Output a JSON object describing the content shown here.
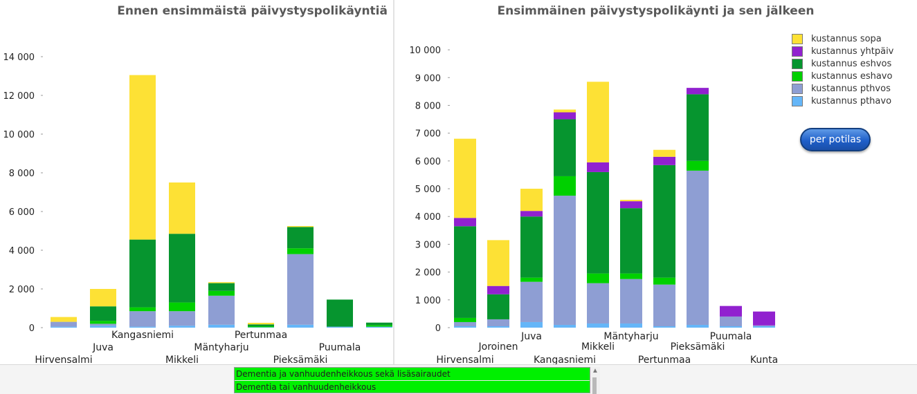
{
  "chart_data": [
    {
      "type": "bar",
      "stacked": true,
      "title": "Ennen ensimmäistä päivystyspolikäyntiä",
      "categories": [
        "Hirvensalmi",
        "Juva",
        "Kangasniemi",
        "Mikkeli",
        "Mäntyharju",
        "Pertunmaa",
        "Pieksämäki",
        "Puumala",
        ""
      ],
      "ylim": [
        0,
        14500
      ],
      "yticks": [
        0,
        2000,
        4000,
        6000,
        8000,
        10000,
        12000,
        14000
      ],
      "ytick_labels": [
        "0",
        "2 000",
        "4 000",
        "6 000",
        "8 000",
        "10 000",
        "12 000",
        "14 000"
      ],
      "series": [
        {
          "name": "kustannus pthavo",
          "values": [
            50,
            100,
            50,
            100,
            150,
            20,
            150,
            50,
            50
          ]
        },
        {
          "name": "kustannus pthvos",
          "values": [
            250,
            100,
            800,
            750,
            1500,
            0,
            3650,
            0,
            0
          ]
        },
        {
          "name": "kustannus eshavo",
          "values": [
            0,
            150,
            200,
            450,
            250,
            50,
            300,
            0,
            80
          ]
        },
        {
          "name": "kustannus eshvos",
          "values": [
            0,
            750,
            3500,
            3550,
            400,
            100,
            1100,
            1400,
            130
          ]
        },
        {
          "name": "kustannus yhtpäiv",
          "values": [
            0,
            0,
            0,
            0,
            0,
            0,
            0,
            0,
            0
          ]
        },
        {
          "name": "kustannus sopa",
          "values": [
            250,
            900,
            8500,
            2650,
            50,
            80,
            50,
            0,
            0
          ]
        }
      ]
    },
    {
      "type": "bar",
      "stacked": true,
      "title": "Ensimmäinen päivystyspolikäynti ja sen jälkeen",
      "categories": [
        "Hirvensalmi",
        "Joroinen",
        "Juva",
        "Kangasniemi",
        "Mikkeli",
        "Mäntyharju",
        "Pertunmaa",
        "Pieksämäki",
        "Puumala",
        "Kunta"
      ],
      "ylim": [
        0,
        10300
      ],
      "yticks": [
        0,
        1000,
        2000,
        3000,
        4000,
        5000,
        6000,
        7000,
        8000,
        9000,
        10000
      ],
      "ytick_labels": [
        "0",
        "1 000",
        "2 000",
        "3 000",
        "4 000",
        "5 000",
        "6 000",
        "7 000",
        "8 000",
        "9 000",
        "10 000"
      ],
      "legend_position": "top-right",
      "series": [
        {
          "name": "kustannus pthavo",
          "values": [
            50,
            50,
            200,
            100,
            150,
            150,
            50,
            100,
            50,
            50
          ]
        },
        {
          "name": "kustannus pthvos",
          "values": [
            150,
            250,
            1450,
            4650,
            1450,
            1600,
            1500,
            5550,
            350,
            30
          ]
        },
        {
          "name": "kustannus eshavo",
          "values": [
            150,
            0,
            150,
            700,
            350,
            200,
            250,
            350,
            0,
            0
          ]
        },
        {
          "name": "kustannus eshvos",
          "values": [
            3300,
            900,
            2200,
            2050,
            3650,
            2350,
            4050,
            2400,
            0,
            0
          ]
        },
        {
          "name": "kustannus yhtpäiv",
          "values": [
            300,
            300,
            200,
            250,
            350,
            250,
            300,
            230,
            380,
            500
          ]
        },
        {
          "name": "kustannus sopa",
          "values": [
            2850,
            1650,
            800,
            100,
            2900,
            50,
            250,
            0,
            0,
            0
          ]
        }
      ]
    }
  ],
  "legend": {
    "items": [
      {
        "label": "kustannus sopa",
        "color": "#fde135"
      },
      {
        "label": "kustannus yhtpäiv",
        "color": "#9121cf"
      },
      {
        "label": "kustannus eshvos",
        "color": "#06952f"
      },
      {
        "label": "kustannus eshavo",
        "color": "#00d000"
      },
      {
        "label": "kustannus pthvos",
        "color": "#8e9ed3"
      },
      {
        "label": "kustannus pthavo",
        "color": "#65b6f8"
      }
    ]
  },
  "series_colors": {
    "kustannus pthavo": "#65b6f8",
    "kustannus pthvos": "#8e9ed3",
    "kustannus eshavo": "#00d000",
    "kustannus eshvos": "#06952f",
    "kustannus yhtpäiv": "#9121cf",
    "kustannus sopa": "#fde135"
  },
  "button": {
    "label": "per potilas"
  },
  "listbox": {
    "items": [
      "Dementia ja vanhuudenheikkous sekä lisäsairaudet",
      "Dementia tai vanhuudenheikkous"
    ],
    "highlight_color": "#00f000"
  }
}
